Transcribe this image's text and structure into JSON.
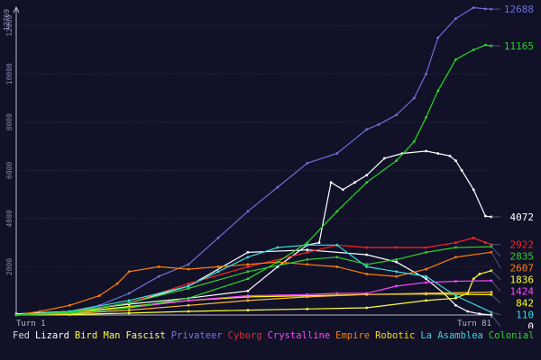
{
  "chart_data": {
    "type": "line",
    "ymax_label": "12769",
    "ylim": [
      0,
      12769
    ],
    "yticks": [
      2000,
      4000,
      6000,
      8000,
      10000,
      12000
    ],
    "ytick_labels": [
      "2000",
      "4000",
      "6000",
      "8000",
      "10000",
      "12000"
    ],
    "x_start_label": "Turn 1",
    "x_end_label": "Turn 81",
    "xlim": [
      1,
      81
    ],
    "grid": true,
    "legend_placement": "bottom",
    "series": [
      {
        "name": "Fed",
        "color": "#ffffff",
        "end_label": "4072",
        "x": [
          1,
          10,
          20,
          30,
          40,
          45,
          50,
          52,
          54,
          56,
          58,
          60,
          63,
          66,
          70,
          72,
          74,
          75,
          76,
          78,
          80,
          81
        ],
        "y": [
          50,
          150,
          450,
          700,
          1000,
          2000,
          2900,
          3000,
          5500,
          5200,
          5500,
          5800,
          6500,
          6700,
          6800,
          6700,
          6600,
          6400,
          6000,
          5200,
          4100,
          4072
        ]
      },
      {
        "name": "Lizard",
        "color": "#ffffff",
        "end_label": "0",
        "x": [
          1,
          10,
          20,
          30,
          40,
          50,
          60,
          65,
          70,
          73,
          75,
          77,
          79,
          81
        ],
        "y": [
          0,
          80,
          500,
          1200,
          2600,
          2700,
          2500,
          2200,
          1500,
          900,
          400,
          150,
          50,
          0
        ]
      },
      {
        "name": "Bird Man",
        "color": "#ffff33",
        "end_label": "1836",
        "x": [
          1,
          10,
          20,
          30,
          40,
          50,
          60,
          70,
          75,
          77,
          78,
          79,
          81
        ],
        "y": [
          0,
          20,
          80,
          150,
          200,
          250,
          300,
          600,
          700,
          900,
          1500,
          1700,
          1836
        ]
      },
      {
        "name": "Fascist",
        "color": "#ffff00",
        "end_label": "842",
        "x": [
          1,
          10,
          20,
          30,
          40,
          50,
          60,
          70,
          81
        ],
        "y": [
          0,
          100,
          350,
          600,
          750,
          800,
          850,
          870,
          842
        ]
      },
      {
        "name": "Privateer",
        "color": "#6f6fd8",
        "end_label": "12688",
        "x": [
          1,
          5,
          10,
          15,
          20,
          25,
          30,
          35,
          40,
          45,
          50,
          55,
          60,
          62,
          65,
          68,
          70,
          72,
          75,
          78,
          80,
          81
        ],
        "y": [
          0,
          50,
          150,
          400,
          900,
          1600,
          2100,
          3200,
          4300,
          5300,
          6300,
          6700,
          7700,
          7900,
          8300,
          9000,
          10000,
          11500,
          12300,
          12750,
          12700,
          12688
        ]
      },
      {
        "name": "Cyborg",
        "color": "#ff2222",
        "end_label": "2922",
        "x": [
          1,
          10,
          20,
          30,
          40,
          50,
          55,
          60,
          65,
          70,
          75,
          78,
          80,
          81
        ],
        "y": [
          0,
          100,
          500,
          1300,
          2000,
          2600,
          2900,
          2800,
          2800,
          2800,
          3000,
          3200,
          3000,
          2922
        ]
      },
      {
        "name": "Crystalline",
        "color": "#ff44ff",
        "end_label": "1424",
        "x": [
          1,
          10,
          20,
          30,
          40,
          50,
          55,
          60,
          65,
          70,
          75,
          81
        ],
        "y": [
          0,
          60,
          300,
          600,
          800,
          850,
          900,
          900,
          1200,
          1350,
          1400,
          1424
        ]
      },
      {
        "name": "Empire",
        "color": "#ff7f00",
        "end_label": "2607",
        "x": [
          1,
          5,
          10,
          15,
          18,
          20,
          25,
          30,
          35,
          40,
          45,
          50,
          55,
          60,
          65,
          70,
          75,
          81
        ],
        "y": [
          0,
          150,
          400,
          800,
          1300,
          1800,
          2000,
          1900,
          2000,
          2100,
          2200,
          2100,
          2000,
          1700,
          1600,
          1900,
          2400,
          2607
        ]
      },
      {
        "name": "Robotic",
        "color": "#ffb833",
        "end_label": "",
        "x": [
          1,
          10,
          20,
          30,
          40,
          50,
          60,
          70,
          81
        ],
        "y": [
          0,
          50,
          200,
          400,
          600,
          750,
          850,
          900,
          950
        ]
      },
      {
        "name": "La Asamblea",
        "color": "#33dddd",
        "end_label": "110",
        "x": [
          1,
          10,
          20,
          30,
          35,
          40,
          45,
          50,
          55,
          60,
          65,
          70,
          75,
          81
        ],
        "y": [
          0,
          150,
          600,
          1200,
          1800,
          2400,
          2800,
          2900,
          2900,
          2000,
          1800,
          1600,
          800,
          110
        ]
      },
      {
        "name": "Colonial",
        "color": "#22dd22",
        "end_label": "11165",
        "x": [
          1,
          10,
          20,
          30,
          40,
          45,
          50,
          55,
          60,
          65,
          68,
          70,
          72,
          75,
          78,
          80,
          81
        ],
        "y": [
          0,
          80,
          300,
          700,
          1500,
          2200,
          3000,
          4300,
          5500,
          6400,
          7200,
          8200,
          9300,
          10600,
          11000,
          11200,
          11165
        ]
      },
      {
        "name": "Colonial (2)",
        "color": "#33cc33",
        "end_label": "2835",
        "x": [
          1,
          10,
          20,
          30,
          40,
          50,
          55,
          60,
          65,
          70,
          75,
          81
        ],
        "y": [
          0,
          120,
          500,
          1100,
          1800,
          2300,
          2400,
          2100,
          2300,
          2600,
          2800,
          2835
        ]
      }
    ]
  },
  "legend": [
    {
      "label": "Fed",
      "color": "#dddddd"
    },
    {
      "label": "Lizard",
      "color": "#ffffff"
    },
    {
      "label": "Bird Man",
      "color": "#ffff33"
    },
    {
      "label": "Fascist",
      "color": "#ffff88"
    },
    {
      "label": "Privateer",
      "color": "#7777ee"
    },
    {
      "label": "Cyborg",
      "color": "#ff2222"
    },
    {
      "label": "Crystalline",
      "color": "#ff44ff"
    },
    {
      "label": "Empire",
      "color": "#ff7f00"
    },
    {
      "label": "Robotic",
      "color": "#ffdd00"
    },
    {
      "label": "La Asamblea",
      "color": "#33dddd"
    },
    {
      "label": "Colonial",
      "color": "#22dd22"
    }
  ]
}
